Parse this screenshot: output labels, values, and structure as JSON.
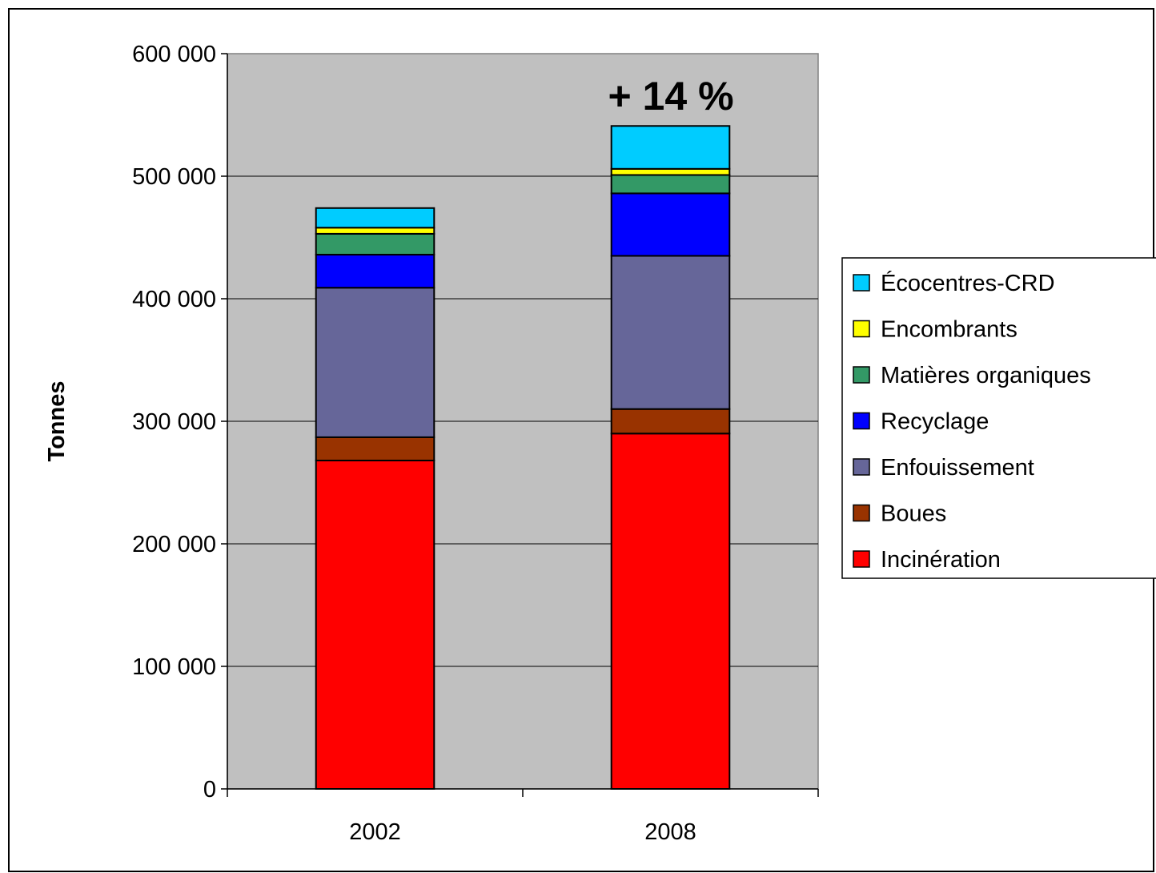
{
  "chart_data": {
    "type": "bar",
    "stacked": true,
    "categories": [
      "2002",
      "2008"
    ],
    "ylabel": "Tonnes",
    "ylim": [
      0,
      600000
    ],
    "yticks": [
      0,
      100000,
      200000,
      300000,
      400000,
      500000,
      600000
    ],
    "ytick_labels": [
      "0",
      "100 000",
      "200 000",
      "300 000",
      "400 000",
      "500 000",
      "600 000"
    ],
    "grid": true,
    "legend_position": "right",
    "annotation": {
      "text": "+ 14 %",
      "category": "2008"
    },
    "series": [
      {
        "name": "Incinération",
        "color": "#ff0000",
        "values": [
          268000,
          290000
        ]
      },
      {
        "name": "Boues",
        "color": "#993300",
        "values": [
          19000,
          20000
        ]
      },
      {
        "name": "Enfouissement",
        "color": "#666699",
        "values": [
          122000,
          125000
        ]
      },
      {
        "name": "Recyclage",
        "color": "#0000ff",
        "values": [
          27000,
          51000
        ]
      },
      {
        "name": "Matières organiques",
        "color": "#339966",
        "values": [
          17000,
          15000
        ]
      },
      {
        "name": "Encombrants",
        "color": "#ffff00",
        "values": [
          5000,
          5000
        ]
      },
      {
        "name": "Écocentres-CRD",
        "color": "#00ccff",
        "values": [
          16000,
          35000
        ]
      }
    ]
  }
}
